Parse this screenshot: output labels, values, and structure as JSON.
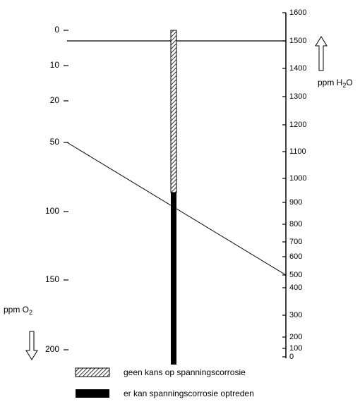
{
  "left_axis": {
    "label": "ppm O",
    "label_sub": "2",
    "ticks": [
      0,
      10,
      20,
      50,
      100,
      150,
      200
    ]
  },
  "right_axis": {
    "label": "ppm H",
    "label_sub": "2",
    "label_end": "O",
    "ticks": [
      1600,
      1500,
      1400,
      1300,
      1200,
      1100,
      1000,
      900,
      800,
      700,
      600,
      500,
      400,
      300,
      200,
      100,
      0
    ]
  },
  "legend": [
    {
      "text": "geen kans op spanningscorrosie",
      "pattern": "hatched"
    },
    {
      "text": "er kan spanningscorrosie optreden",
      "pattern": "solid"
    }
  ]
}
